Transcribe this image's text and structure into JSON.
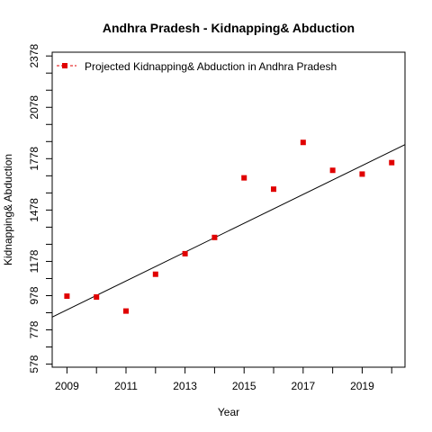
{
  "chart_data": {
    "type": "scatter",
    "title": "Andhra Pradesh  -  Kidnapping& Abduction",
    "xlabel": "Year",
    "ylabel": "Kidnapping& Abduction",
    "xlim": [
      2008.5,
      2020.45
    ],
    "ylim": [
      560,
      2400
    ],
    "x_ticks": [
      2009,
      2011,
      2013,
      2015,
      2017,
      2019
    ],
    "x_minor_ticks": [
      2010,
      2012,
      2014,
      2016,
      2018,
      2020
    ],
    "y_ticks": [
      578,
      778,
      978,
      1178,
      1478,
      1778,
      2078,
      2378
    ],
    "y_minor_ticks": [
      678,
      878,
      1078,
      1278,
      1378,
      1578,
      1678,
      1878,
      1978,
      2178,
      2278
    ],
    "series": [
      {
        "name": "Projected  Kidnapping& Abduction  in  Andhra Pradesh",
        "color": "#e00000",
        "marker": "square",
        "x": [
          2009,
          2010,
          2011,
          2012,
          2013,
          2014,
          2015,
          2016,
          2017,
          2018,
          2019,
          2020
        ],
        "y": [
          975,
          970,
          888,
          1103,
          1223,
          1318,
          1666,
          1600,
          1873,
          1710,
          1688,
          1755
        ]
      }
    ],
    "trend_line": {
      "x": [
        2008.5,
        2020.45
      ],
      "y": [
        853,
        1860
      ],
      "color": "#000000"
    },
    "legend_position": "top-left",
    "grid": false
  }
}
